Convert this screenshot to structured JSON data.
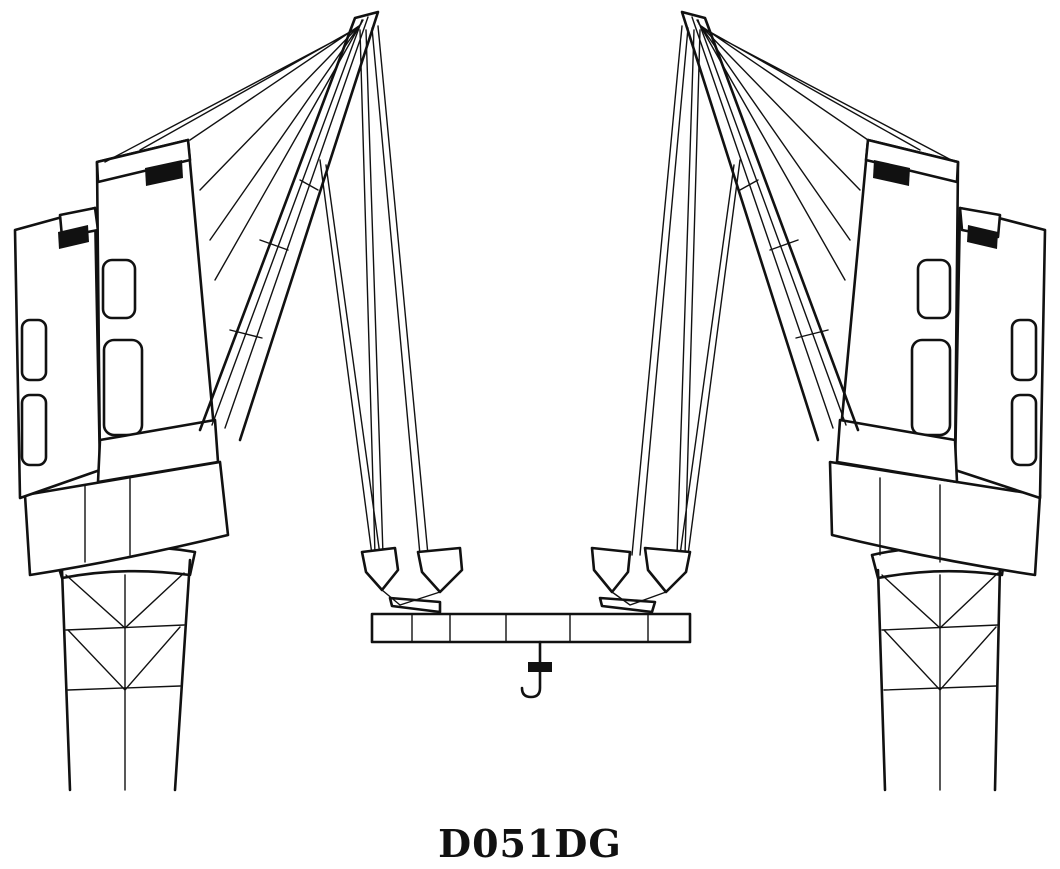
{
  "caption": "D051DG",
  "colors": {
    "ink": "#111111",
    "paper": "#ffffff"
  }
}
